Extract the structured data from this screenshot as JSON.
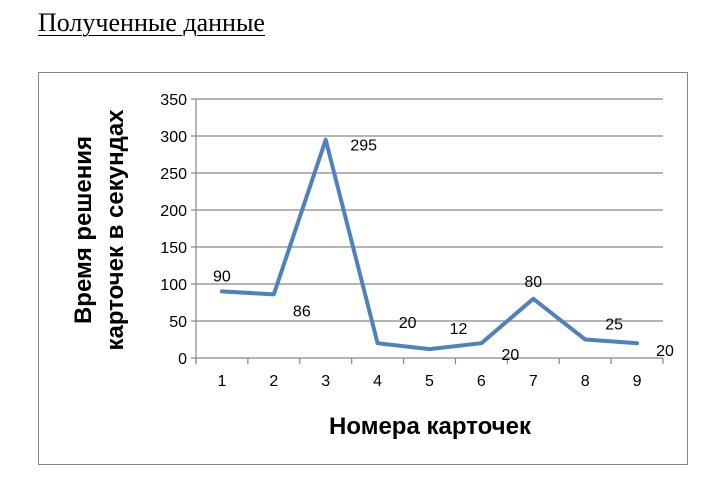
{
  "heading": "Полученные данные",
  "chart_data": {
    "type": "line",
    "categories": [
      "1",
      "2",
      "3",
      "4",
      "5",
      "6",
      "7",
      "8",
      "9"
    ],
    "series": [
      {
        "values": [
          90,
          86,
          295,
          20,
          12,
          20,
          80,
          25,
          20
        ],
        "color": "#4F81BD"
      }
    ],
    "data_labels": [
      "90",
      "86",
      "295",
      "20",
      "12",
      "20",
      "80",
      "25",
      "20"
    ],
    "yticks": [
      "0",
      "50",
      "100",
      "150",
      "200",
      "250",
      "300",
      "350"
    ],
    "ylim": [
      0,
      350
    ],
    "ylabel_lines": [
      "Время решения",
      "карточек в секундах"
    ],
    "xlabel": "Номера карточек",
    "grid": true,
    "legend": "none"
  }
}
